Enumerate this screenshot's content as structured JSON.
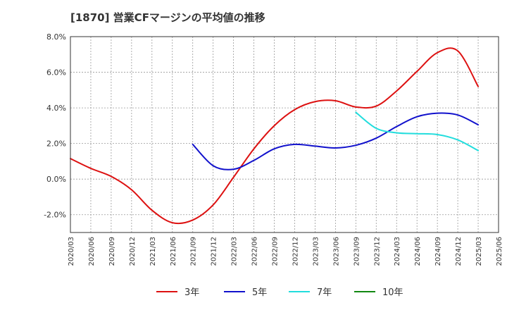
{
  "chart_data": {
    "type": "line",
    "title": "[1870]  営業CFマージンの平均値の推移",
    "xlabel": "",
    "ylabel": "",
    "ylim": [
      -3.0,
      8.0
    ],
    "y_ticks": [
      8.0,
      6.0,
      4.0,
      2.0,
      0.0,
      -2.0
    ],
    "y_tick_labels": [
      "8.0%",
      "6.0%",
      "4.0%",
      "2.0%",
      "0.0%",
      "-2.0%"
    ],
    "grid": true,
    "legend_position": "bottom",
    "x_tick_labels": [
      "2020/03",
      "2020/06",
      "2020/09",
      "2020/12",
      "2021/03",
      "2021/06",
      "2021/09",
      "2021/12",
      "2022/03",
      "2022/06",
      "2022/09",
      "2022/12",
      "2023/03",
      "2023/06",
      "2023/09",
      "2023/12",
      "2024/03",
      "2024/06",
      "2024/09",
      "2024/12",
      "2025/03",
      "2025/06"
    ],
    "series": [
      {
        "name": "3年",
        "color": "#dd1111",
        "points": [
          [
            "2020/03",
            1.15
          ],
          [
            "2020/06",
            0.6
          ],
          [
            "2020/09",
            0.15
          ],
          [
            "2020/12",
            -0.6
          ],
          [
            "2021/03",
            -1.75
          ],
          [
            "2021/06",
            -2.45
          ],
          [
            "2021/09",
            -2.3
          ],
          [
            "2021/12",
            -1.45
          ],
          [
            "2022/03",
            0.1
          ],
          [
            "2022/06",
            1.7
          ],
          [
            "2022/09",
            3.0
          ],
          [
            "2022/12",
            3.9
          ],
          [
            "2023/03",
            4.35
          ],
          [
            "2023/06",
            4.4
          ],
          [
            "2023/09",
            4.05
          ],
          [
            "2023/12",
            4.1
          ],
          [
            "2024/03",
            4.95
          ],
          [
            "2024/06",
            6.05
          ],
          [
            "2024/09",
            7.1
          ],
          [
            "2024/12",
            7.2
          ],
          [
            "2025/03",
            5.2
          ]
        ]
      },
      {
        "name": "5年",
        "color": "#1111cc",
        "points": [
          [
            "2021/09",
            1.95
          ],
          [
            "2021/12",
            0.75
          ],
          [
            "2022/03",
            0.55
          ],
          [
            "2022/06",
            1.05
          ],
          [
            "2022/09",
            1.7
          ],
          [
            "2022/12",
            1.95
          ],
          [
            "2023/03",
            1.85
          ],
          [
            "2023/06",
            1.75
          ],
          [
            "2023/09",
            1.9
          ],
          [
            "2023/12",
            2.3
          ],
          [
            "2024/03",
            2.95
          ],
          [
            "2024/06",
            3.5
          ],
          [
            "2024/09",
            3.7
          ],
          [
            "2024/12",
            3.6
          ],
          [
            "2025/03",
            3.05
          ]
        ]
      },
      {
        "name": "7年",
        "color": "#22dddd",
        "points": [
          [
            "2023/09",
            3.75
          ],
          [
            "2023/12",
            2.85
          ],
          [
            "2024/03",
            2.6
          ],
          [
            "2024/06",
            2.55
          ],
          [
            "2024/09",
            2.5
          ],
          [
            "2024/12",
            2.2
          ],
          [
            "2025/03",
            1.6
          ]
        ]
      },
      {
        "name": "10年",
        "color": "#118811",
        "points": []
      }
    ]
  }
}
